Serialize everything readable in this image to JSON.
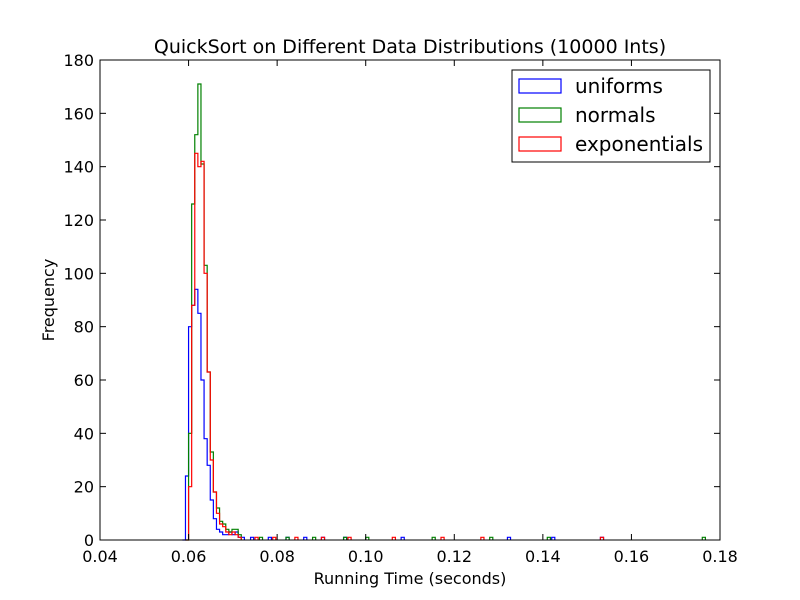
{
  "chart_data": {
    "type": "histogram",
    "title": "QuickSort on Different Data Distributions (10000 Ints)",
    "xlabel": "Running Time (seconds)",
    "ylabel": "Frequency",
    "xlim": [
      0.04,
      0.18
    ],
    "ylim": [
      0,
      180
    ],
    "xticks": [
      0.04,
      0.06,
      0.08,
      0.1,
      0.12,
      0.14,
      0.16,
      0.18
    ],
    "xtick_labels": [
      "0.04",
      "0.06",
      "0.08",
      "0.10",
      "0.12",
      "0.14",
      "0.16",
      "0.18"
    ],
    "yticks": [
      0,
      20,
      40,
      60,
      80,
      100,
      120,
      140,
      160,
      180
    ],
    "ytick_labels": [
      "0",
      "20",
      "40",
      "60",
      "80",
      "100",
      "120",
      "140",
      "160",
      "180"
    ],
    "grid": false,
    "legend_position": "top-right",
    "series": [
      {
        "name": "uniforms",
        "color": "#0000ff",
        "x": [
          0.0586,
          0.0593,
          0.06,
          0.0607,
          0.0614,
          0.0621,
          0.0628,
          0.0635,
          0.0642,
          0.0649,
          0.0656,
          0.0663,
          0.067,
          0.0677,
          0.0684,
          0.0691,
          0.0698,
          0.0705,
          0.0712,
          0.0719,
          0.074,
          0.078,
          0.082,
          0.086,
          0.09,
          0.095,
          0.108,
          0.132,
          0.142,
          0.153
        ],
        "values": [
          0,
          24,
          80,
          88,
          94,
          85,
          60,
          38,
          28,
          15,
          8,
          4,
          3,
          2,
          2,
          3,
          2,
          3,
          1,
          1,
          1,
          1,
          1,
          1,
          1,
          1,
          1,
          1,
          1,
          1
        ]
      },
      {
        "name": "normals",
        "color": "#008000",
        "x": [
          0.0593,
          0.06,
          0.0607,
          0.0614,
          0.0621,
          0.0628,
          0.0635,
          0.0642,
          0.0649,
          0.0656,
          0.0663,
          0.067,
          0.0677,
          0.0684,
          0.0691,
          0.0698,
          0.0705,
          0.0712,
          0.076,
          0.082,
          0.088,
          0.095,
          0.1,
          0.115,
          0.128,
          0.141,
          0.176
        ],
        "values": [
          0,
          40,
          126,
          152,
          171,
          141,
          103,
          63,
          33,
          18,
          12,
          7,
          6,
          4,
          3,
          4,
          4,
          2,
          1,
          1,
          1,
          1,
          1,
          1,
          1,
          1,
          1
        ]
      },
      {
        "name": "exponentials",
        "color": "#ff0000",
        "x": [
          0.0593,
          0.06,
          0.0607,
          0.0614,
          0.0621,
          0.0628,
          0.0635,
          0.0642,
          0.0649,
          0.0656,
          0.0663,
          0.067,
          0.0677,
          0.0684,
          0.0691,
          0.0698,
          0.0705,
          0.0712,
          0.075,
          0.079,
          0.084,
          0.09,
          0.096,
          0.106,
          0.117,
          0.126,
          0.153
        ],
        "values": [
          0,
          20,
          88,
          145,
          140,
          142,
          100,
          63,
          30,
          18,
          10,
          6,
          5,
          3,
          2,
          3,
          2,
          1,
          1,
          1,
          1,
          1,
          1,
          1,
          1,
          1,
          1
        ]
      }
    ]
  }
}
